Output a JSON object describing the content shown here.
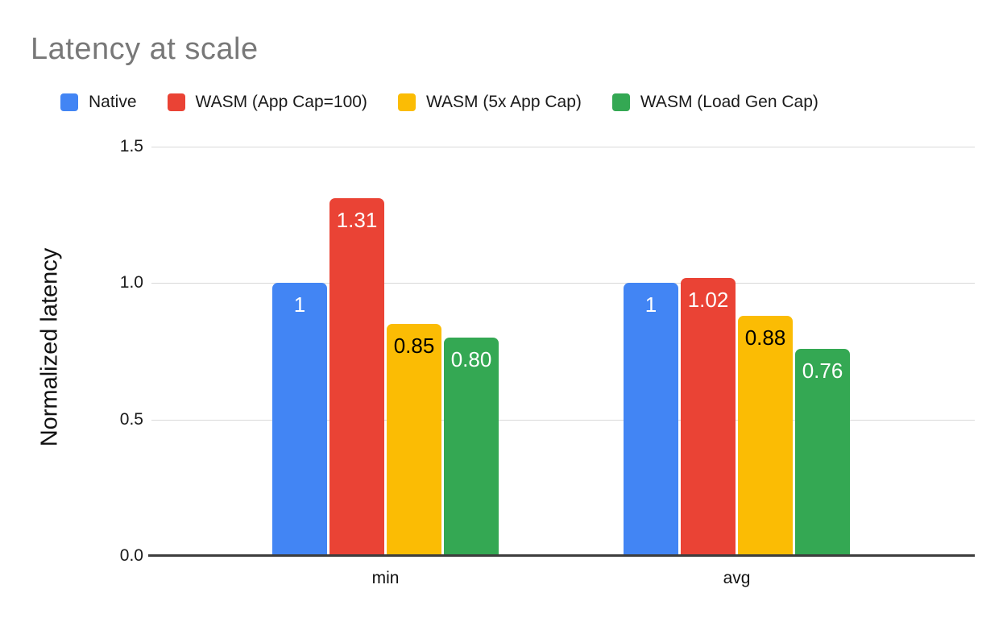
{
  "title": "Latency at scale",
  "chart_data": {
    "type": "bar",
    "title": "Latency at scale",
    "categories": [
      "min",
      "avg"
    ],
    "series": [
      {
        "name": "Native",
        "color": "#4285f4",
        "label_color": "#ffffff",
        "values": [
          1.0,
          1.0
        ],
        "labels": [
          "1",
          "1"
        ]
      },
      {
        "name": "WASM (App Cap=100)",
        "color": "#ea4335",
        "label_color": "#ffffff",
        "values": [
          1.31,
          1.02
        ],
        "labels": [
          "1.31",
          "1.02"
        ]
      },
      {
        "name": "WASM (5x App Cap)",
        "color": "#fbbc04",
        "label_color": "#000000",
        "values": [
          0.85,
          0.88
        ],
        "labels": [
          "0.85",
          "0.88"
        ]
      },
      {
        "name": "WASM (Load Gen Cap)",
        "color": "#34a853",
        "label_color": "#ffffff",
        "values": [
          0.8,
          0.76
        ],
        "labels": [
          "0.80",
          "0.76"
        ]
      }
    ],
    "xlabel": "",
    "ylabel": "Normalized latency",
    "ylim": [
      0,
      1.5
    ],
    "yticks": [
      0.0,
      0.5,
      1.0,
      1.5
    ],
    "ytick_labels": [
      "0.0",
      "0.5",
      "1.0",
      "1.5"
    ],
    "grid": true,
    "legend_position": "top",
    "background": "#ffffff",
    "title_color": "#787878",
    "gridline_color": "#d9d9d9",
    "axis_line_color": "#3d3d3d"
  }
}
